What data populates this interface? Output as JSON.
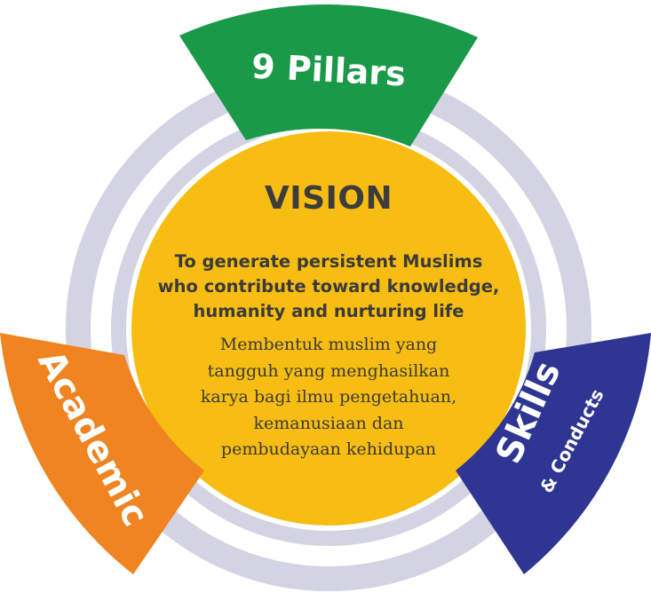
{
  "vision": {
    "title": "VISION",
    "english_lines": [
      "To generate persistent Muslims",
      "who contribute toward knowledge,",
      "humanity and nurturing life"
    ],
    "malay_lines": [
      "Membentuk muslim yang",
      "tangguh yang menghasilkan",
      "karya bagi ilmu pengetahuan,",
      "kemanusiaan dan",
      "pembudayaan kehidupan"
    ]
  },
  "pillars": {
    "top": {
      "label": "9 Pillars",
      "color": "#1a9a48"
    },
    "left": {
      "label": "Academic",
      "color": "#ef8420"
    },
    "right": {
      "label": "Skills",
      "sublabel": "& Conducts",
      "color": "#2e3592"
    }
  },
  "colors": {
    "ring": "#d3d3e3",
    "center": "#f7bd12",
    "background": "#ffffff"
  }
}
